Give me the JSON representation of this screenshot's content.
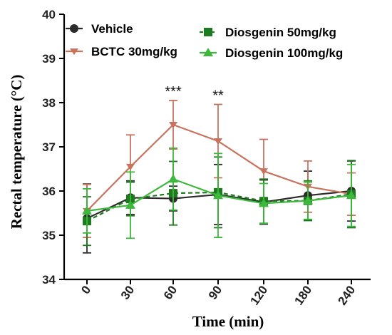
{
  "chart_data": {
    "type": "line",
    "xlabel": "Time (min)",
    "ylabel": "Rectal temperature (°C)",
    "x_categories": [
      "0",
      "30",
      "60",
      "90",
      "120",
      "180",
      "240"
    ],
    "ylim": [
      34,
      40
    ],
    "y_ticks": [
      "34",
      "35",
      "36",
      "37",
      "38",
      "39",
      "40"
    ],
    "legend_position": "top",
    "grid": false,
    "series": [
      {
        "name": "Vehicle",
        "color": "#2b2b2b",
        "marker": "circle",
        "dash": "solid",
        "values": [
          35.38,
          35.85,
          35.83,
          35.92,
          35.75,
          35.9,
          36.0
        ],
        "err": [
          0.78,
          0.38,
          0.28,
          0.68,
          0.5,
          0.55,
          0.68
        ]
      },
      {
        "name": "BCTC 30mg/kg",
        "color": "#c8735d",
        "marker": "triangle-down",
        "dash": "solid",
        "values": [
          35.55,
          36.55,
          37.5,
          37.13,
          36.45,
          36.1,
          35.93
        ],
        "err": [
          0.6,
          0.72,
          0.55,
          0.83,
          0.72,
          0.58,
          0.48
        ]
      },
      {
        "name": "Diosgenin 50mg/kg",
        "color": "#1e7a1e",
        "marker": "square",
        "dash": "dashed",
        "values": [
          35.32,
          35.82,
          35.95,
          35.97,
          35.77,
          35.78,
          35.93
        ],
        "err": [
          0.55,
          0.38,
          0.72,
          0.8,
          0.5,
          0.45,
          0.76
        ]
      },
      {
        "name": "Diosgenin 100mg/kg",
        "color": "#3db83d",
        "marker": "triangle-up",
        "dash": "solid",
        "values": [
          35.55,
          35.68,
          36.27,
          35.9,
          35.72,
          35.78,
          35.9
        ],
        "err": [
          0.5,
          0.75,
          0.7,
          0.95,
          0.45,
          0.42,
          0.7
        ]
      }
    ],
    "annotations": [
      {
        "x": "60",
        "text": "***"
      },
      {
        "x": "90",
        "text": "**"
      }
    ]
  }
}
